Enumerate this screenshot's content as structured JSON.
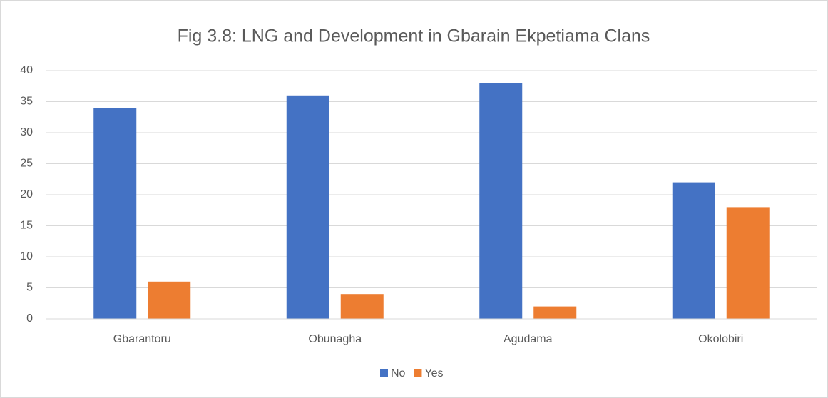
{
  "chart_data": {
    "type": "bar",
    "title": "Fig 3.8: LNG and Development in Gbarain Ekpetiama Clans",
    "categories": [
      "Gbarantoru",
      "Obunagha",
      "Agudama",
      "Okolobiri"
    ],
    "series": [
      {
        "name": "No",
        "color": "#4472c4",
        "values": [
          34,
          36,
          38,
          22
        ]
      },
      {
        "name": "Yes",
        "color": "#ed7d31",
        "values": [
          6,
          4,
          2,
          18
        ]
      }
    ],
    "ylim": [
      0,
      40
    ],
    "yticks": [
      0,
      5,
      10,
      15,
      20,
      25,
      30,
      35,
      40
    ],
    "grid": true,
    "legend": "bottom"
  }
}
